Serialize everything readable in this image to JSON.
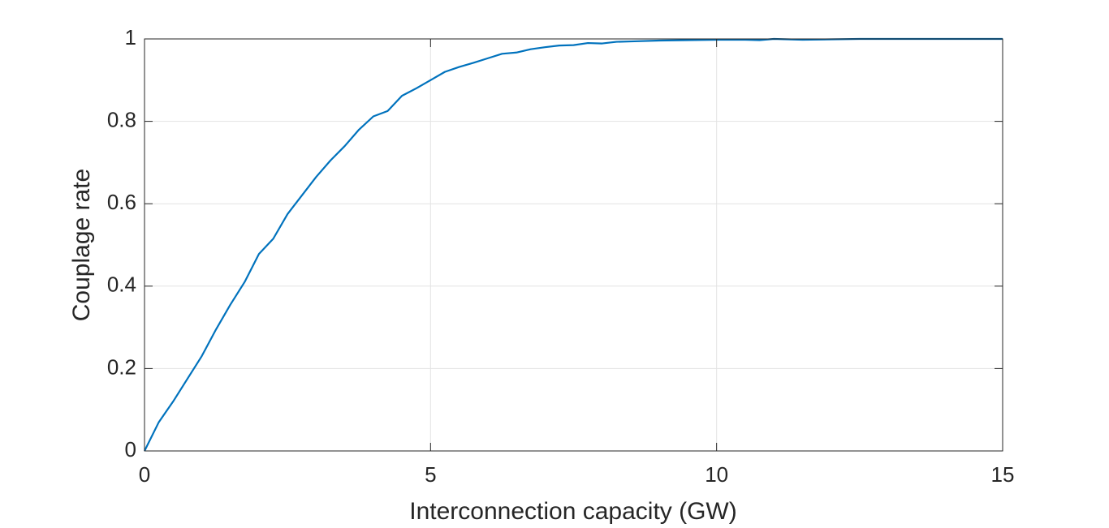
{
  "chart_data": {
    "type": "line",
    "xlabel": "Interconnection capacity (GW)",
    "ylabel": "Couplage rate",
    "x": [
      0,
      0.25,
      0.5,
      0.75,
      1,
      1.25,
      1.5,
      1.75,
      2,
      2.25,
      2.5,
      2.75,
      3,
      3.25,
      3.5,
      3.75,
      4,
      4.25,
      4.5,
      4.75,
      5,
      5.25,
      5.5,
      5.75,
      6,
      6.25,
      6.5,
      6.75,
      7,
      7.25,
      7.5,
      7.75,
      8,
      8.25,
      8.5,
      9,
      9.5,
      10,
      10.5,
      10.75,
      11,
      11.5,
      12,
      12.5,
      13,
      14,
      15
    ],
    "series": [
      {
        "color": "#0072bd",
        "values": [
          0,
          0.07,
          0.12,
          0.175,
          0.23,
          0.295,
          0.355,
          0.41,
          0.478,
          0.515,
          0.575,
          0.62,
          0.665,
          0.705,
          0.74,
          0.78,
          0.812,
          0.825,
          0.862,
          0.88,
          0.9,
          0.92,
          0.932,
          0.942,
          0.953,
          0.964,
          0.967,
          0.975,
          0.98,
          0.984,
          0.985,
          0.99,
          0.989,
          0.993,
          0.994,
          0.996,
          0.997,
          0.998,
          0.998,
          0.997,
          1.0,
          0.998,
          0.999,
          1.0,
          1.0,
          1.0,
          1.0
        ]
      }
    ],
    "xlim": [
      0,
      15
    ],
    "xticks": [
      0,
      5,
      10,
      15
    ],
    "ylim": [
      0,
      1
    ],
    "yticks": [
      0,
      0.2,
      0.4,
      0.6,
      0.8,
      1
    ],
    "grid": true
  }
}
